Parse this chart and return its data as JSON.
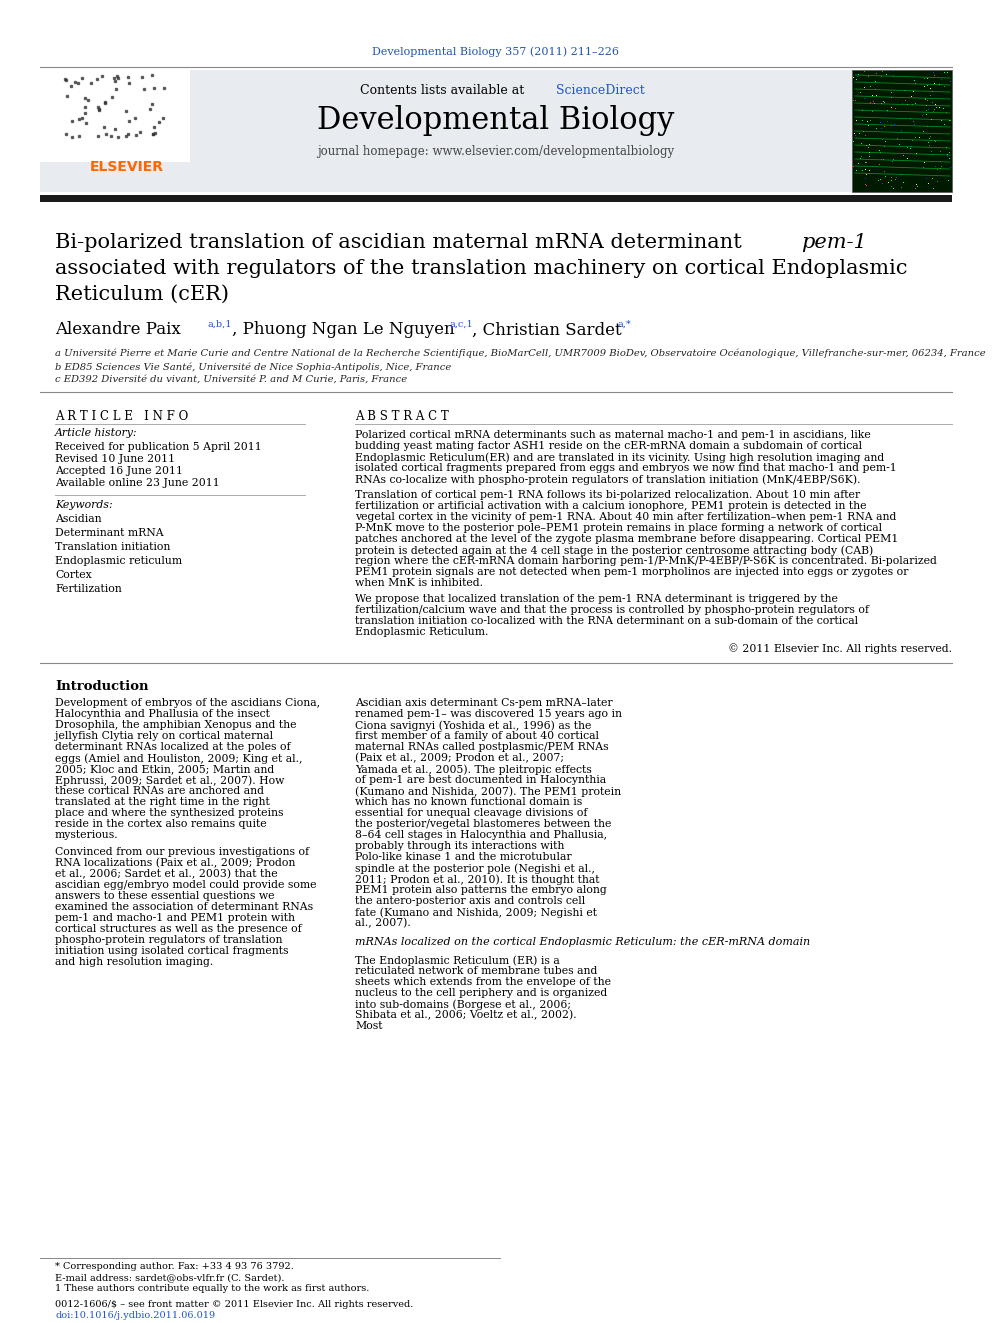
{
  "page_bg": "#ffffff",
  "top_citation": "Developmental Biology 357 (2011) 211–226",
  "top_citation_color": "#2255aa",
  "journal_title": "Developmental Biology",
  "journal_subtitle": "journal homepage: www.elsevier.com/developmentalbiology",
  "contents_prefix": "Contents lists available at ",
  "science_direct": "ScienceDirect",
  "header_bg": "#e8ecf0",
  "thick_bar_color": "#1a1a1a",
  "article_info_header": "A R T I C L E   I N F O",
  "abstract_header": "A B S T R A C T",
  "article_history_label": "Article history:",
  "received": "Received for publication 5 April 2011",
  "revised": "Revised 10 June 2011",
  "accepted": "Accepted 16 June 2011",
  "available": "Available online 23 June 2011",
  "keywords_label": "Keywords:",
  "keywords": [
    "Ascidian",
    "Determinant mRNA",
    "Translation initiation",
    "Endoplasmic reticulum",
    "Cortex",
    "Fertilization"
  ],
  "abstract_para1": "Polarized cortical mRNA determinants such as maternal macho-1 and pem-1 in ascidians, like budding yeast mating factor ASH1 reside on the cER-mRNA domain a subdomain of cortical Endoplasmic Reticulum(ER) and are translated in its vicinity. Using high resolution imaging and isolated cortical fragments prepared from eggs and embryos we now find that macho-1 and pem-1 RNAs co-localize with phospho-protein regulators of translation initiation (MnK/4EBP/S6K).",
  "abstract_para2": "Translation of cortical pem-1 RNA follows its bi-polarized relocalization. About 10 min after fertilization or artificial activation with a calcium ionophore, PEM1 protein is detected in the vegetal cortex in the vicinity of pem-1 RNA. About 40 min after fertilization–when pem-1 RNA and P-MnK move to the posterior pole–PEM1 protein remains in place forming a network of cortical patches anchored at the level of the zygote plasma membrane before disappearing. Cortical PEM1 protein is detected again at the 4 cell stage in the posterior centrosome attracting body (CAB) region where the cER-mRNA domain harboring pem-1/P-MnK/P-4EBP/P-S6K is concentrated. Bi-polarized PEM1 protein signals are not detected when pem-1 morpholinos are injected into eggs or zygotes or when MnK is inhibited.",
  "abstract_para3": "We propose that localized translation of the pem-1 RNA determinant is triggered by the fertilization/calcium wave and that the process is controlled by phospho-protein regulators of translation initiation co-localized with the RNA determinant on a sub-domain of the cortical Endoplasmic Reticulum.",
  "copyright": "© 2011 Elsevier Inc. All rights reserved.",
  "affil_a": "a Université Pierre et Marie Curie and Centre National de la Recherche Scientifique, BioMarCell, UMR7009 BioDev, Observatoire Océanologique, Villefranche-sur-mer, 06234, France",
  "affil_b": "b ED85 Sciences Vie Santé, Université de Nice Sophia-Antipolis, Nice, France",
  "affil_c": "c ED392 Diversité du vivant, Université P. and M Curie, Paris, France",
  "intro_header": "Introduction",
  "intro_para1": "    Development of embryos of the ascidians Ciona, Halocynthia and Phallusia of the insect Drosophila, the amphibian Xenopus and the jellyfish Clytia rely on cortical maternal determinant RNAs localized at the poles of eggs (Amiel and Houliston, 2009; King et al., 2005; Kloc and Etkin, 2005; Martin and Ephrussi, 2009; Sardet et al., 2007). How these cortical RNAs are anchored and translated at the right time in the right place and where the synthesized proteins reside in the cortex also remains quite mysterious.",
  "intro_para2": "    Convinced from our previous investigations of RNA localizations (Paix et al., 2009; Prodon et al., 2006; Sardet et al., 2003) that the ascidian egg/embryo model could provide some answers to these essential questions we examined the association of determinant RNAs pem-1 and macho-1 and PEM1 protein with cortical structures as well as the presence of phospho-protein regulators of translation initiation using isolated cortical fragments and high resolution imaging.",
  "right_para1": "    Ascidian axis determinant Cs-pem mRNA–later renamed pem-1– was discovered 15 years ago in Ciona savignyi (Yoshida et al., 1996) as the first member of a family of about 40 cortical maternal RNAs called postplasmic/PEM RNAs (Paix et al., 2009; Prodon et al., 2007; Yamada et al., 2005). The pleitropic effects of pem-1 are best documented in Halocynthia (Kumano and Nishida, 2007). The PEM1 protein which has no known functional domain is essential for unequal cleavage divisions of the posterior/vegetal blastomeres between the 8–64 cell stages in Halocynthia and Phallusia, probably through its interactions with Polo-like kinase 1 and the microtubular spindle at the posterior pole (Negishi et al., 2011; Prodon et al., 2010). It is thought that PEM1 protein also patterns the embryo along the antero-posterior axis and controls cell fate (Kumano and Nishida, 2009; Negishi et al., 2007).",
  "right_section_header": "mRNAs localized on the cortical Endoplasmic Reticulum: the cER-mRNA domain",
  "right_para2": "    The Endoplasmic Reticulum (ER) is a reticulated network of membrane tubes and sheets which extends from the envelope of the nucleus to the cell periphery and is organized into sub-domains (Borgese et al., 2006; Shibata et al., 2006; Voeltz et al., 2002). Most",
  "footer_note1": "* Corresponding author. Fax: +33 4 93 76 3792.",
  "footer_note2": "E-mail address: sardet@obs-vlfr.fr (C. Sardet).",
  "footer_note3": "1 These authors contribute equally to the work as first authors.",
  "footer_issn": "0012-1606/$ – see front matter © 2011 Elsevier Inc. All rights reserved.",
  "footer_doi": "doi:10.1016/j.ydbio.2011.06.019",
  "link_color": "#2255cc",
  "elsevier_orange": "#ff6600"
}
